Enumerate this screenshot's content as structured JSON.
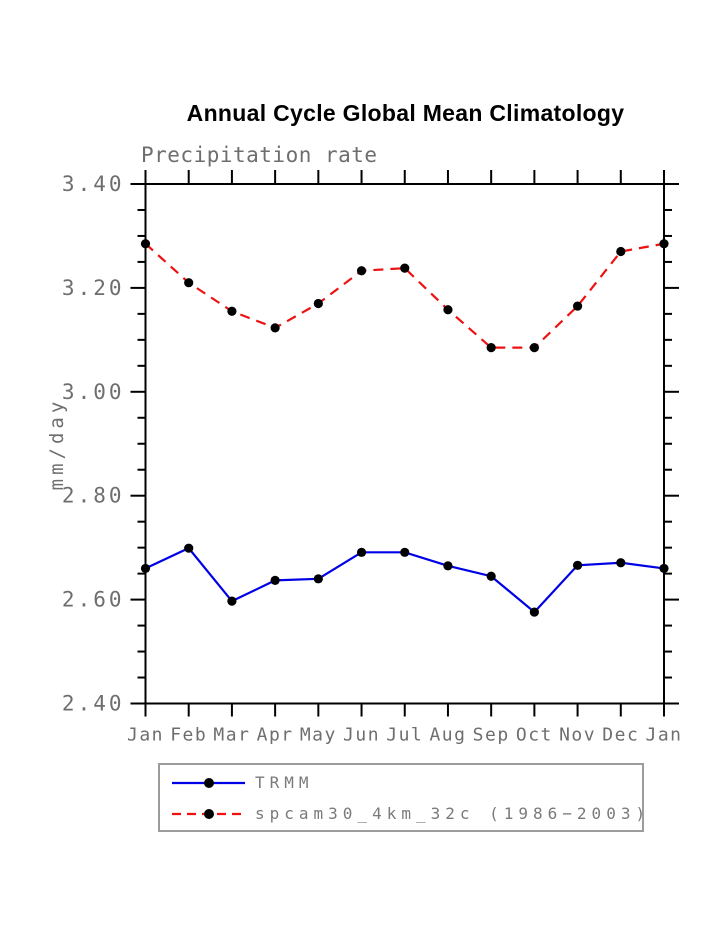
{
  "colors": {
    "background": "#ffffff",
    "axis": "#000000",
    "tick_label": "#6e6e6e",
    "title": "#000000",
    "legend_border": "#9c9c9c",
    "legend_text": "#7a7a7a",
    "trmm_blue": "#0000e6",
    "spcam_red": "#ee1111",
    "marker_black": "#000000"
  },
  "chart_data": {
    "type": "line",
    "title": "Annual Cycle Global Mean Climatology",
    "subtitle": "Precipitation rate",
    "ylabel": "mm/day",
    "xlabel": "",
    "categories": [
      "Jan",
      "Feb",
      "Mar",
      "Apr",
      "May",
      "Jun",
      "Jul",
      "Aug",
      "Sep",
      "Oct",
      "Nov",
      "Dec",
      "Jan"
    ],
    "ylim": [
      2.4,
      3.4
    ],
    "ytick_step": 0.2,
    "yminor_step": 0.05,
    "ytick_labels": [
      "2.40",
      "2.60",
      "2.80",
      "3.00",
      "3.20",
      "3.40"
    ],
    "grid": false,
    "legend_position": "bottom-left",
    "series": [
      {
        "name": "TRMM",
        "color": "#0000e6",
        "line_style": "solid",
        "marker": "circle",
        "marker_color": "#000000",
        "values": [
          2.66,
          2.699,
          2.597,
          2.637,
          2.64,
          2.691,
          2.691,
          2.665,
          2.645,
          2.576,
          2.666,
          2.671,
          2.66
        ]
      },
      {
        "name": "spcam30_4km_32c (1986−2003)",
        "color": "#ee1111",
        "line_style": "dashed",
        "marker": "circle",
        "marker_color": "#000000",
        "values": [
          3.285,
          3.21,
          3.155,
          3.123,
          3.17,
          3.233,
          3.238,
          3.158,
          3.085,
          3.085,
          3.165,
          3.27,
          3.285
        ]
      }
    ]
  }
}
